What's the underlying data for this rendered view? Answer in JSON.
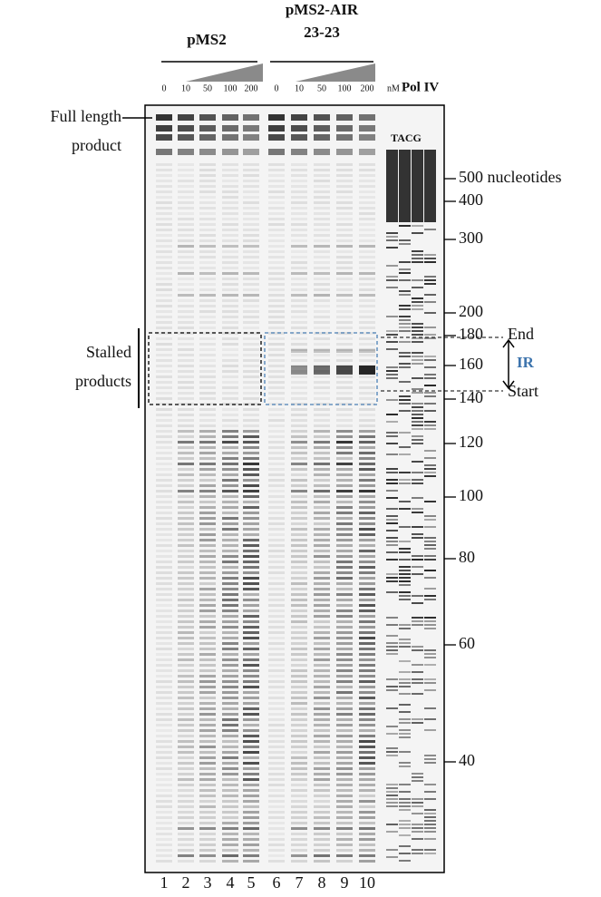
{
  "groups": [
    {
      "label_lines": [
        "pMS2"
      ],
      "concentrations": [
        "0",
        "10",
        "50",
        "100",
        "200"
      ]
    },
    {
      "label_lines": [
        "pMS2-AIR",
        "23-23"
      ],
      "concentrations": [
        "0",
        "10",
        "50",
        "100",
        "200"
      ]
    }
  ],
  "unit": "nM",
  "enzyme": "Pol IV",
  "sequencing_label": "TACG",
  "left_labels": {
    "full_length": [
      "Full length",
      "product"
    ],
    "stalled": [
      "Stalled",
      "products"
    ]
  },
  "markers": [
    "500 nucleotides",
    "400",
    "300",
    "200",
    "180",
    "160",
    "140",
    "120",
    "100",
    "80",
    "60",
    "40"
  ],
  "region": {
    "end": "End",
    "start": "Start",
    "name": "IR"
  },
  "lanes": [
    "1",
    "2",
    "3",
    "4",
    "5",
    "6",
    "7",
    "8",
    "9",
    "10"
  ]
}
